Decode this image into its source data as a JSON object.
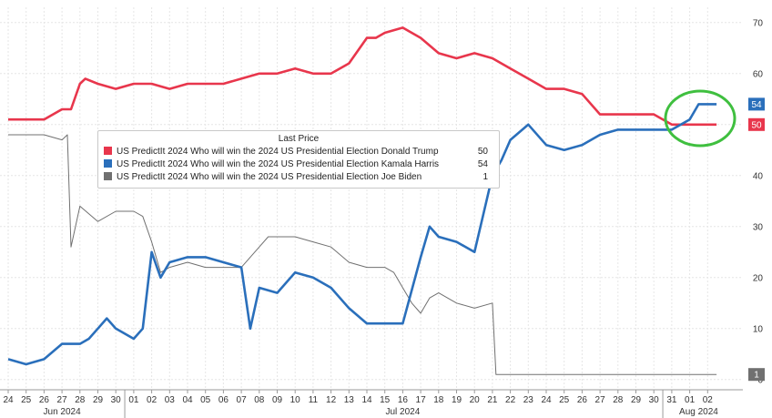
{
  "chart_data": {
    "type": "line",
    "legend": {
      "title": "Last Price",
      "placement": "top-left",
      "entries": [
        {
          "label": "US PredictIt 2024 Who will win the 2024 US Presidential Election Donald Trump",
          "last": "50",
          "color": "#e8364c"
        },
        {
          "label": "US PredictIt 2024 Who will win the 2024 US Presidential Election Kamala Harris",
          "last": "54",
          "color": "#2a6fbb"
        },
        {
          "label": "US PredictIt 2024 Who will win the 2024 US Presidential Election Joe Biden",
          "last": "1",
          "color": "#707070"
        }
      ]
    },
    "x_tick_labels": [
      "24",
      "25",
      "26",
      "27",
      "28",
      "29",
      "30",
      "01",
      "02",
      "03",
      "04",
      "05",
      "06",
      "07",
      "08",
      "09",
      "10",
      "11",
      "12",
      "13",
      "14",
      "15",
      "16",
      "17",
      "18",
      "19",
      "20",
      "21",
      "22",
      "23",
      "24",
      "25",
      "26",
      "27",
      "28",
      "29",
      "30",
      "31",
      "01",
      "02"
    ],
    "month_labels": [
      {
        "label": "Jun 2024",
        "at_tick": 3
      },
      {
        "label": "Jul 2024",
        "at_tick": 22
      },
      {
        "label": "Aug 2024",
        "at_tick": 38.5
      }
    ],
    "y_ticks": [
      0,
      10,
      20,
      30,
      40,
      50,
      60,
      70
    ],
    "ylim": [
      -2,
      73
    ],
    "grid": true,
    "series": [
      {
        "name": "US PredictIt 2024 Who will win the 2024 US Presidential Election Donald Trump",
        "color": "#e8364c",
        "end_label": "50",
        "x": [
          0,
          1,
          2,
          3,
          3.5,
          4,
          4.3,
          5,
          6,
          7,
          8,
          9,
          10,
          11,
          12,
          13,
          14,
          15,
          16,
          17,
          18,
          19,
          20,
          20.5,
          21,
          22,
          23,
          24,
          25,
          26,
          27,
          28,
          29,
          30,
          31,
          32,
          33,
          34,
          35,
          36,
          37,
          38,
          38.5,
          39,
          39.5
        ],
        "y": [
          51,
          51,
          51,
          53,
          53,
          58,
          59,
          58,
          57,
          58,
          58,
          57,
          58,
          58,
          58,
          59,
          60,
          60,
          61,
          60,
          60,
          62,
          67,
          67,
          68,
          69,
          67,
          64,
          63,
          64,
          63,
          61,
          59,
          57,
          57,
          56,
          52,
          52,
          52,
          52,
          50,
          50,
          50,
          50,
          50
        ]
      },
      {
        "name": "US PredictIt 2024 Who will win the 2024 US Presidential Election Kamala Harris",
        "color": "#2a6fbb",
        "end_label": "54",
        "x": [
          0,
          1,
          2,
          3,
          4,
          4.5,
          5,
          5.5,
          6,
          7,
          7.5,
          8,
          8.5,
          9,
          10,
          11,
          12,
          13,
          13.5,
          14,
          15,
          16,
          17,
          18,
          19,
          20,
          21,
          22,
          23,
          23.5,
          24,
          25,
          26,
          27,
          27.5,
          28,
          29,
          30,
          31,
          32,
          33,
          34,
          35,
          36,
          37,
          38,
          38.5,
          39,
          39.5
        ],
        "y": [
          4,
          3,
          4,
          7,
          7,
          8,
          10,
          12,
          10,
          8,
          10,
          25,
          20,
          23,
          24,
          24,
          23,
          22,
          10,
          18,
          17,
          21,
          20,
          18,
          14,
          11,
          11,
          11,
          24,
          30,
          28,
          27,
          25,
          40,
          43,
          47,
          50,
          46,
          45,
          46,
          48,
          49,
          49,
          49,
          49,
          51,
          54,
          54,
          54
        ]
      },
      {
        "name": "US PredictIt 2024 Who will win the 2024 US Presidential Election Joe Biden",
        "color": "#707070",
        "end_label": "1",
        "x": [
          0,
          1,
          2,
          3,
          3.3,
          3.5,
          4,
          5,
          6,
          7,
          7.5,
          8,
          8.5,
          9,
          10,
          11,
          12,
          13,
          14,
          14.5,
          15,
          16,
          17,
          18,
          19,
          20,
          21,
          21.5,
          22,
          22.5,
          23,
          23.5,
          24,
          25,
          26,
          27,
          27.2,
          28,
          30,
          33,
          36,
          39.5
        ],
        "y": [
          48,
          48,
          48,
          47,
          48,
          26,
          34,
          31,
          33,
          33,
          32,
          27,
          21,
          22,
          23,
          22,
          22,
          22,
          26,
          28,
          28,
          28,
          27,
          26,
          23,
          22,
          22,
          21,
          18,
          15,
          13,
          16,
          17,
          15,
          14,
          15,
          1,
          1,
          1,
          1,
          1,
          1
        ]
      }
    ]
  }
}
